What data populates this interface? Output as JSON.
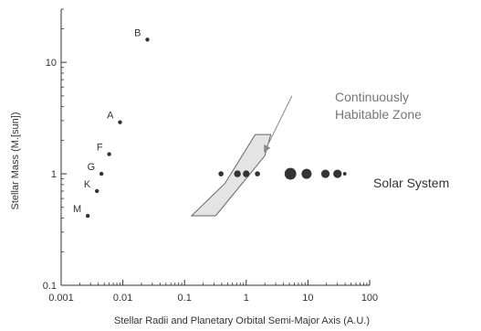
{
  "chart_data": {
    "type": "scatter",
    "title": "",
    "xlabel": "Stellar Radii and Planetary Orbital Semi-Major Axis (A.U.)",
    "ylabel": "Stellar Mass (M.[sun])",
    "xscale": "log",
    "yscale": "log",
    "xlim": [
      0.001,
      100
    ],
    "ylim": [
      0.1,
      30
    ],
    "x_ticks": [
      "0.001",
      "0.01",
      "0.1",
      "1",
      "10",
      "100"
    ],
    "y_ticks": [
      "0.1",
      "1",
      "10"
    ],
    "grid": false,
    "stars": [
      {
        "label": "B",
        "x": 0.025,
        "y": 16
      },
      {
        "label": "A",
        "x": 0.009,
        "y": 2.9
      },
      {
        "label": "F",
        "x": 0.006,
        "y": 1.5
      },
      {
        "label": "G",
        "x": 0.0045,
        "y": 1.0
      },
      {
        "label": "K",
        "x": 0.0038,
        "y": 0.7
      },
      {
        "label": "M",
        "x": 0.0027,
        "y": 0.42
      }
    ],
    "solar_system": {
      "label": "Solar System",
      "y": 1.0,
      "planets": [
        {
          "x": 0.39,
          "size": 2
        },
        {
          "x": 0.72,
          "size": 3
        },
        {
          "x": 1.0,
          "size": 3
        },
        {
          "x": 1.52,
          "size": 2
        },
        {
          "x": 5.2,
          "size": 6
        },
        {
          "x": 9.5,
          "size": 5
        },
        {
          "x": 19.2,
          "size": 4
        },
        {
          "x": 30.1,
          "size": 4
        },
        {
          "x": 39.5,
          "size": 1
        }
      ]
    },
    "habitable_zone": {
      "label": [
        "Continuously",
        "Habitable Zone"
      ],
      "color": "#e4e4e4",
      "outline_color": "#666666",
      "polygon": [
        {
          "x": 0.13,
          "y": 0.42
        },
        {
          "x": 0.32,
          "y": 0.42
        },
        {
          "x": 2.0,
          "y": 1.45
        },
        {
          "x": 2.5,
          "y": 2.25
        },
        {
          "x": 1.4,
          "y": 2.25
        },
        {
          "x": 0.45,
          "y": 0.82
        }
      ],
      "arrow_from": {
        "x": 5.5,
        "y": 5.0
      },
      "arrow_to": {
        "x": 2.0,
        "y": 1.6
      }
    },
    "colors": {
      "marker": "#333333",
      "axis": "#333333"
    }
  }
}
